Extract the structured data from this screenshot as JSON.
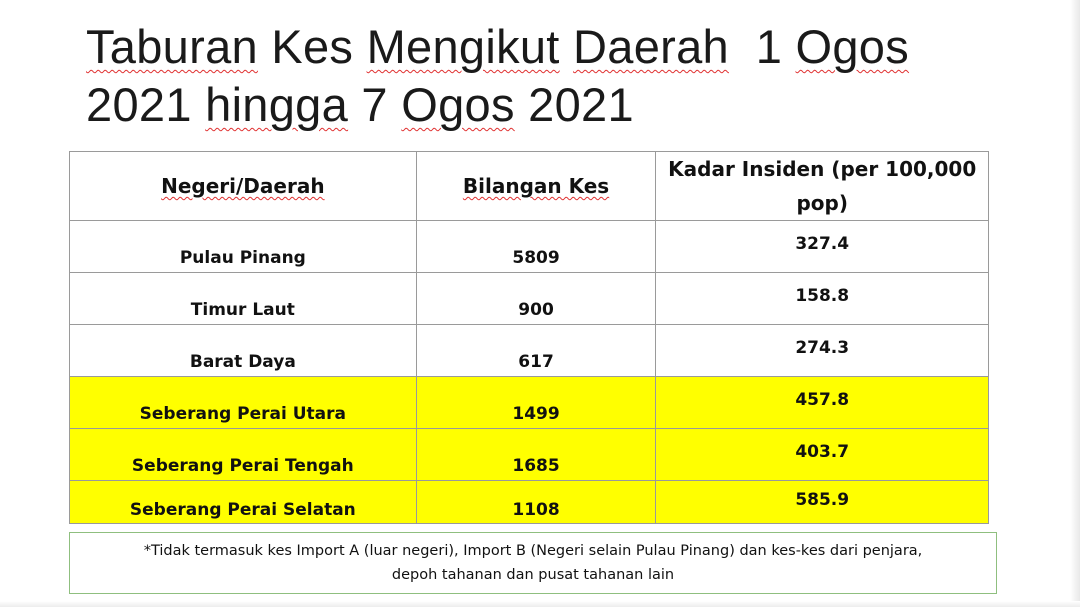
{
  "title": {
    "line1": [
      "Taburan",
      " Kes ",
      "Mengikut",
      " ",
      "Daerah",
      "  1 ",
      "Ogos"
    ],
    "line2": [
      "2021 ",
      "hingga",
      " 7 ",
      "Ogos",
      " 2021"
    ]
  },
  "table": {
    "headers": {
      "region": "Negeri/Daerah",
      "cases": "Bilangan Kes",
      "rate": "Kadar Insiden (per 100,000 pop)"
    },
    "rows": [
      {
        "region": "Pulau Pinang",
        "cases": "5809",
        "rate": "327.4",
        "highlight": false
      },
      {
        "region": "Timur Laut",
        "cases": "900",
        "rate": "158.8",
        "highlight": false
      },
      {
        "region": "Barat Daya",
        "cases": "617",
        "rate": "274.3",
        "highlight": false
      },
      {
        "region": "Seberang Perai Utara",
        "cases": "1499",
        "rate": "457.8",
        "highlight": true
      },
      {
        "region": "Seberang Perai Tengah",
        "cases": "1685",
        "rate": "403.7",
        "highlight": true
      },
      {
        "region": "Seberang Perai Selatan",
        "cases": "1108",
        "rate": "585.9",
        "highlight": true
      }
    ],
    "highlight_color": "#ffff00"
  },
  "note": {
    "line1": "*Tidak termasuk kes Import A (luar negeri), Import B (Negeri selain Pulau Pinang) dan kes-kes dari penjara,",
    "line2": "depoh tahanan dan pusat tahanan lain"
  },
  "colors": {
    "spellcheck": "#e03030",
    "note_border": "#8fbf7f"
  }
}
